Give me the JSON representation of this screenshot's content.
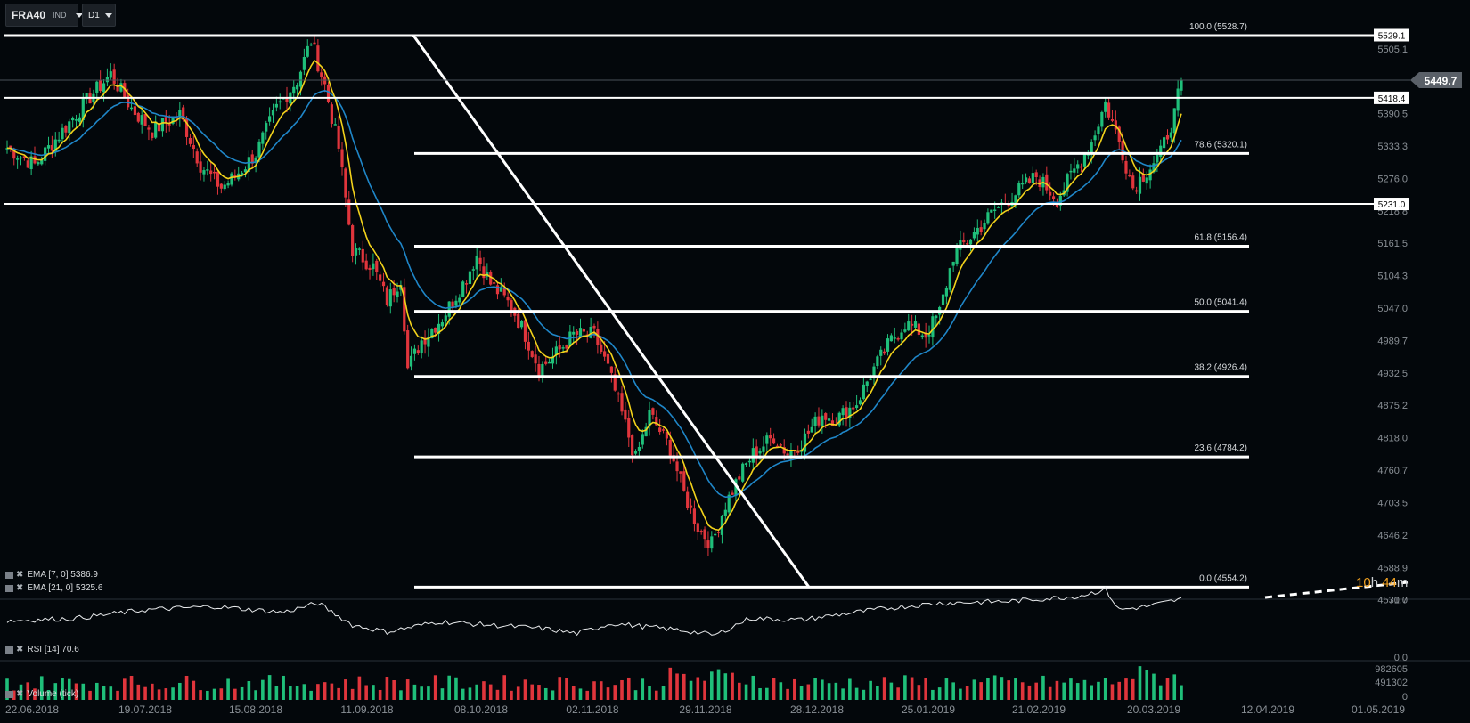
{
  "toolbar": {
    "symbol": "FRA40",
    "symbol_type": "IND",
    "timeframe": "D1"
  },
  "indicators": {
    "ema7": "EMA [7, 0] 5386.9",
    "ema21": "EMA [21, 0] 5325.6",
    "rsi": "RSI [14] 70.6",
    "volume": "Volume (tick)"
  },
  "countdown": {
    "hours": "10",
    "h_label": "h",
    "minutes": "44",
    "m_label": "m"
  },
  "colors": {
    "background": "#03070b",
    "bull": "#1fbf7a",
    "bear": "#e0353c",
    "ema7": "#f2d21b",
    "ema21": "#1f86c8",
    "fib": "#ffffff",
    "countdown": "#f0a020"
  },
  "chart_data": {
    "type": "candlestick",
    "price_axis": {
      "ticks": [
        "5505.1",
        "5390.5",
        "5333.3",
        "5276.0",
        "5218.8",
        "5161.5",
        "5104.3",
        "5047.0",
        "4989.7",
        "4932.5",
        "4875.2",
        "4818.0",
        "4760.7",
        "4703.5",
        "4646.2",
        "4588.9",
        "4531.7"
      ],
      "current_price": "5449.7",
      "ylim": [
        4531.7,
        5560
      ]
    },
    "time_axis": [
      "22.06.2018",
      "19.07.2018",
      "15.08.2018",
      "11.09.2018",
      "08.10.2018",
      "02.11.2018",
      "29.11.2018",
      "28.12.2018",
      "25.01.2019",
      "21.02.2019",
      "20.03.2019",
      "12.04.2019",
      "01.05.2019"
    ],
    "horizontal_levels": [
      {
        "label": "5529.1",
        "value": 5529.1
      },
      {
        "label": "5418.4",
        "value": 5418.4
      },
      {
        "label": "5231.0",
        "value": 5231.0
      }
    ],
    "fibonacci_levels": [
      {
        "label": "100.0 (5528.7)",
        "value": 5528.7
      },
      {
        "label": "78.6 (5320.1)",
        "value": 5320.1
      },
      {
        "label": "61.8 (5156.4)",
        "value": 5156.4
      },
      {
        "label": "50.0 (5041.4)",
        "value": 5041.4
      },
      {
        "label": "38.2 (4926.4)",
        "value": 4926.4
      },
      {
        "label": "23.6 (4784.2)",
        "value": 4784.2
      },
      {
        "label": "0.0 (4554.2)",
        "value": 4554.2
      }
    ],
    "close_path": [
      [
        0,
        5330
      ],
      [
        8,
        5300
      ],
      [
        16,
        5360
      ],
      [
        24,
        5420
      ],
      [
        30,
        5460
      ],
      [
        36,
        5400
      ],
      [
        42,
        5360
      ],
      [
        50,
        5390
      ],
      [
        56,
        5300
      ],
      [
        62,
        5260
      ],
      [
        66,
        5280
      ],
      [
        72,
        5320
      ],
      [
        78,
        5400
      ],
      [
        84,
        5450
      ],
      [
        88,
        5520
      ],
      [
        92,
        5440
      ],
      [
        96,
        5330
      ],
      [
        100,
        5150
      ],
      [
        106,
        5120
      ],
      [
        110,
        5060
      ],
      [
        114,
        5100
      ],
      [
        116,
        4940
      ],
      [
        120,
        4990
      ],
      [
        126,
        5030
      ],
      [
        132,
        5090
      ],
      [
        136,
        5140
      ],
      [
        140,
        5090
      ],
      [
        146,
        5050
      ],
      [
        150,
        5000
      ],
      [
        154,
        4940
      ],
      [
        158,
        4960
      ],
      [
        164,
        5000
      ],
      [
        170,
        5000
      ],
      [
        174,
        4940
      ],
      [
        178,
        4860
      ],
      [
        182,
        4780
      ],
      [
        186,
        4860
      ],
      [
        192,
        4800
      ],
      [
        196,
        4720
      ],
      [
        200,
        4660
      ],
      [
        204,
        4630
      ],
      [
        208,
        4700
      ],
      [
        212,
        4750
      ],
      [
        216,
        4790
      ],
      [
        222,
        4820
      ],
      [
        226,
        4790
      ],
      [
        230,
        4810
      ],
      [
        236,
        4860
      ],
      [
        240,
        4850
      ],
      [
        246,
        4880
      ],
      [
        250,
        4930
      ],
      [
        256,
        4990
      ],
      [
        260,
        5020
      ],
      [
        266,
        5000
      ],
      [
        270,
        5040
      ],
      [
        274,
        5140
      ],
      [
        280,
        5180
      ],
      [
        286,
        5220
      ],
      [
        292,
        5250
      ],
      [
        298,
        5280
      ],
      [
        304,
        5240
      ],
      [
        308,
        5280
      ],
      [
        314,
        5340
      ],
      [
        318,
        5410
      ],
      [
        322,
        5340
      ],
      [
        326,
        5260
      ],
      [
        330,
        5290
      ],
      [
        334,
        5320
      ],
      [
        338,
        5390
      ],
      [
        340,
        5449.7
      ]
    ],
    "candle_count": 341,
    "ema7_last": 5386.9,
    "ema21_last": 5325.6,
    "rsi": {
      "period": 14,
      "last": 70.6,
      "ticks": [
        "70.0",
        "0.0"
      ],
      "path": [
        [
          0,
          45
        ],
        [
          20,
          48
        ],
        [
          40,
          58
        ],
        [
          60,
          62
        ],
        [
          80,
          55
        ],
        [
          90,
          66
        ],
        [
          100,
          40
        ],
        [
          110,
          32
        ],
        [
          125,
          44
        ],
        [
          140,
          40
        ],
        [
          155,
          36
        ],
        [
          165,
          30
        ],
        [
          175,
          42
        ],
        [
          185,
          38
        ],
        [
          195,
          34
        ],
        [
          205,
          28
        ],
        [
          215,
          48
        ],
        [
          230,
          46
        ],
        [
          240,
          52
        ],
        [
          255,
          60
        ],
        [
          270,
          66
        ],
        [
          290,
          68
        ],
        [
          310,
          74
        ],
        [
          318,
          82
        ],
        [
          322,
          58
        ],
        [
          330,
          62
        ],
        [
          340,
          70.6
        ]
      ]
    },
    "volume": {
      "ticks": [
        "982605",
        "491302",
        "0"
      ],
      "peak_value": 982605
    }
  }
}
